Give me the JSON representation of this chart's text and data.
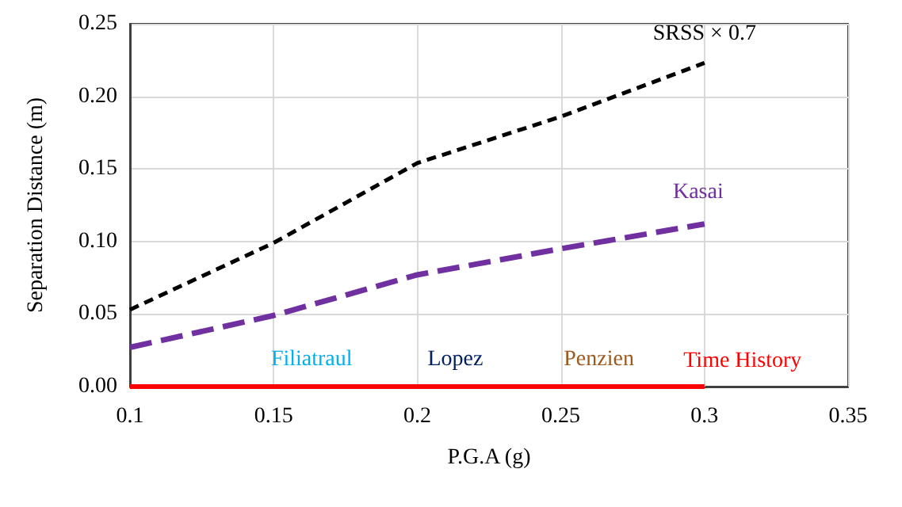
{
  "chart_data": {
    "type": "line",
    "xlabel": "P.G.A (g)",
    "ylabel": "Separation Distance (m)",
    "x": [
      0.1,
      0.15,
      0.2,
      0.25,
      0.3
    ],
    "series": [
      {
        "name": "SRSS × 0.7",
        "color": "#000000",
        "line_style": "dashed",
        "values": [
          0.053,
          0.099,
          0.154,
          0.186,
          0.223
        ]
      },
      {
        "name": "Kasai",
        "color": "#7030a0",
        "line_style": "dashed",
        "values": [
          0.027,
          0.049,
          0.077,
          0.095,
          0.112
        ]
      },
      {
        "name": "Filiatraul",
        "color": "#00b0f0",
        "line_style": "solid",
        "values": [
          null,
          null,
          null,
          null,
          null
        ]
      },
      {
        "name": "Lopez",
        "color": "#002060",
        "line_style": "solid",
        "values": [
          null,
          null,
          null,
          null,
          null
        ]
      },
      {
        "name": "Penzien",
        "color": "#9c5a1e",
        "line_style": "solid",
        "values": [
          null,
          null,
          null,
          null,
          null
        ]
      },
      {
        "name": "Time History",
        "color": "#ff0000",
        "line_style": "solid",
        "values": [
          0,
          0,
          0,
          0,
          0
        ]
      }
    ],
    "xlim": [
      0.1,
      0.35
    ],
    "xticks": [
      0.1,
      0.15,
      0.2,
      0.25,
      0.3,
      0.35
    ],
    "ylim": [
      0,
      0.25
    ],
    "yticks": [
      {
        "value": 0,
        "label": "0.00"
      },
      0.05,
      {
        "value": 0.1,
        "label": "0.10"
      },
      0.15,
      {
        "value": 0.2,
        "label": "0.20"
      },
      0.25
    ],
    "grid": true,
    "legend": false,
    "marker": "none"
  }
}
